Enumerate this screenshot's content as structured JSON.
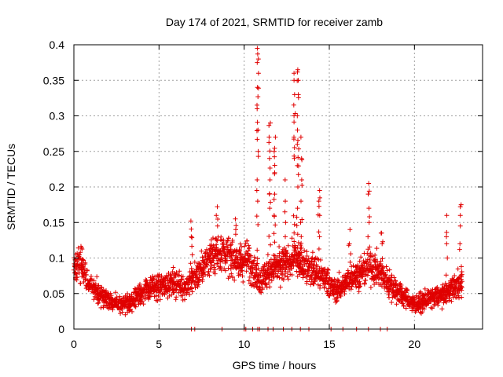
{
  "chart_data": {
    "type": "scatter",
    "title": "Day 174 of 2021, SRMTID for receiver zamb",
    "xlabel": "GPS time / hours",
    "ylabel": "SRMTID / TECUs",
    "xlim": [
      0,
      24
    ],
    "ylim": [
      0,
      0.4
    ],
    "xticks": [
      0,
      5,
      10,
      15,
      20
    ],
    "yticks": [
      0,
      0.05,
      0.1,
      0.15,
      0.2,
      0.25,
      0.3,
      0.35,
      0.4
    ],
    "xtick_labels": [
      "0",
      "5",
      "10",
      "15",
      "20"
    ],
    "ytick_labels": [
      "0",
      "0.05",
      "0.1",
      "0.15",
      "0.2",
      "0.25",
      "0.3",
      "0.35",
      "0.4"
    ],
    "grid": true,
    "marker": "+",
    "color": "#e00000",
    "trend": [
      [
        0.0,
        0.08
      ],
      [
        0.3,
        0.095
      ],
      [
        0.7,
        0.075
      ],
      [
        1.2,
        0.055
      ],
      [
        1.8,
        0.045
      ],
      [
        2.5,
        0.035
      ],
      [
        3.2,
        0.035
      ],
      [
        3.8,
        0.05
      ],
      [
        4.3,
        0.055
      ],
      [
        5.0,
        0.06
      ],
      [
        5.8,
        0.065
      ],
      [
        6.5,
        0.06
      ],
      [
        7.2,
        0.075
      ],
      [
        8.0,
        0.1
      ],
      [
        8.6,
        0.11
      ],
      [
        9.2,
        0.1
      ],
      [
        9.8,
        0.095
      ],
      [
        10.2,
        0.1
      ],
      [
        10.6,
        0.08
      ],
      [
        11.0,
        0.07
      ],
      [
        11.6,
        0.085
      ],
      [
        12.3,
        0.09
      ],
      [
        13.0,
        0.1
      ],
      [
        13.6,
        0.09
      ],
      [
        14.2,
        0.08
      ],
      [
        14.8,
        0.07
      ],
      [
        15.3,
        0.055
      ],
      [
        15.8,
        0.06
      ],
      [
        16.4,
        0.075
      ],
      [
        17.0,
        0.08
      ],
      [
        17.5,
        0.09
      ],
      [
        18.1,
        0.075
      ],
      [
        18.7,
        0.06
      ],
      [
        19.4,
        0.045
      ],
      [
        20.0,
        0.035
      ],
      [
        20.6,
        0.04
      ],
      [
        21.2,
        0.045
      ],
      [
        21.8,
        0.05
      ],
      [
        22.3,
        0.06
      ],
      [
        22.8,
        0.065
      ]
    ],
    "spikes": [
      {
        "x": 10.8,
        "values": [
          0.18,
          0.21,
          0.25,
          0.28,
          0.31,
          0.34,
          0.36,
          0.38,
          0.395
        ]
      },
      {
        "x": 11.5,
        "values": [
          0.17,
          0.19,
          0.21,
          0.24,
          0.27,
          0.29
        ]
      },
      {
        "x": 11.8,
        "values": [
          0.16,
          0.19,
          0.22,
          0.25,
          0.27
        ]
      },
      {
        "x": 12.4,
        "values": [
          0.13,
          0.15,
          0.165,
          0.18,
          0.21
        ]
      },
      {
        "x": 12.95,
        "values": [
          0.24,
          0.27,
          0.3,
          0.33,
          0.35,
          0.36
        ]
      },
      {
        "x": 13.15,
        "values": [
          0.17,
          0.2,
          0.23,
          0.26,
          0.28,
          0.3,
          0.33,
          0.35,
          0.365
        ]
      },
      {
        "x": 13.35,
        "values": [
          0.15,
          0.18,
          0.21,
          0.24,
          0.27
        ]
      },
      {
        "x": 14.4,
        "values": [
          0.13,
          0.16,
          0.18,
          0.195
        ]
      },
      {
        "x": 16.2,
        "values": [
          0.12,
          0.14
        ]
      },
      {
        "x": 17.3,
        "values": [
          0.13,
          0.15,
          0.17,
          0.19,
          0.205
        ]
      },
      {
        "x": 18.1,
        "values": [
          0.12,
          0.135
        ]
      },
      {
        "x": 21.9,
        "values": [
          0.12,
          0.13,
          0.16
        ]
      },
      {
        "x": 22.7,
        "values": [
          0.12,
          0.145,
          0.16,
          0.175
        ]
      },
      {
        "x": 8.4,
        "values": [
          0.145,
          0.16,
          0.172
        ]
      },
      {
        "x": 9.5,
        "values": [
          0.14,
          0.155
        ]
      },
      {
        "x": 6.9,
        "values": [
          0.13,
          0.152
        ]
      }
    ],
    "baseline_points": [
      6.9,
      7.1,
      8.7,
      10.0,
      10.1,
      10.5,
      10.8,
      10.9,
      11.4,
      11.7,
      12.3,
      12.8,
      13.3,
      13.8,
      15.1,
      15.8,
      16.6,
      17.3,
      18.0,
      18.4
    ]
  }
}
